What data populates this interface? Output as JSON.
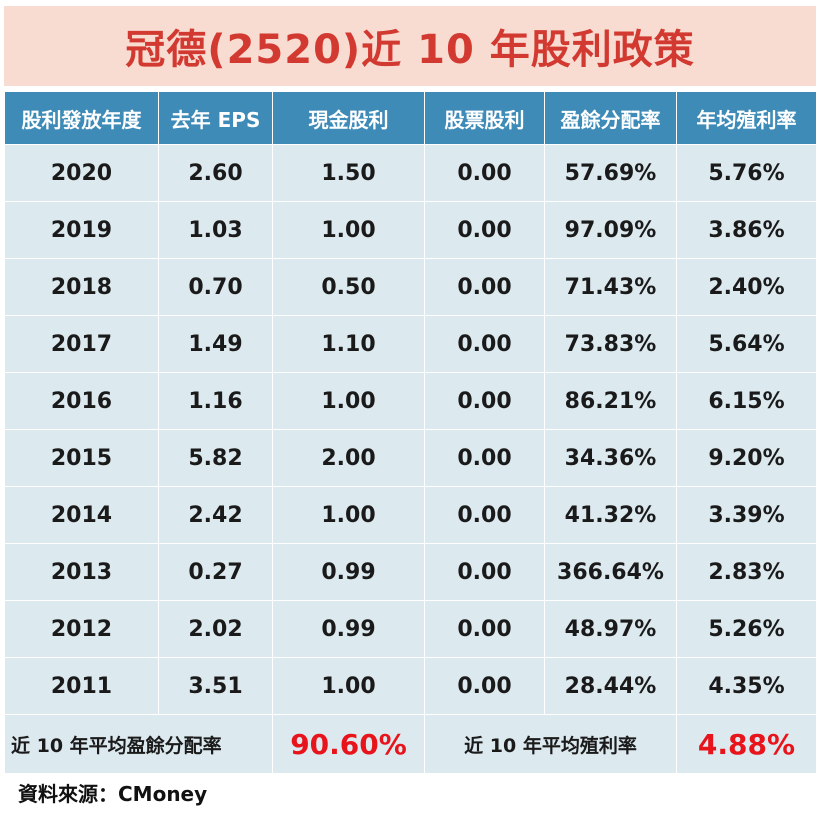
{
  "title": "冠德(2520)近 10 年股利政策",
  "headers": [
    "股利發放年度",
    "去年 EPS",
    "現金股利",
    "股票股利",
    "盈餘分配率",
    "年均殖利率"
  ],
  "rows": [
    [
      "2020",
      "2.60",
      "1.50",
      "0.00",
      "57.69%",
      "5.76%"
    ],
    [
      "2019",
      "1.03",
      "1.00",
      "0.00",
      "97.09%",
      "3.86%"
    ],
    [
      "2018",
      "0.70",
      "0.50",
      "0.00",
      "71.43%",
      "2.40%"
    ],
    [
      "2017",
      "1.49",
      "1.10",
      "0.00",
      "73.83%",
      "5.64%"
    ],
    [
      "2016",
      "1.16",
      "1.00",
      "0.00",
      "86.21%",
      "6.15%"
    ],
    [
      "2015",
      "5.82",
      "2.00",
      "0.00",
      "34.36%",
      "9.20%"
    ],
    [
      "2014",
      "2.42",
      "1.00",
      "0.00",
      "41.32%",
      "3.39%"
    ],
    [
      "2013",
      "0.27",
      "0.99",
      "0.00",
      "366.64%",
      "2.83%"
    ],
    [
      "2012",
      "2.02",
      "0.99",
      "0.00",
      "48.97%",
      "5.26%"
    ],
    [
      "2011",
      "3.51",
      "1.00",
      "0.00",
      "28.44%",
      "4.35%"
    ]
  ],
  "summary": {
    "payout_label": "近 10 年平均盈餘分配率",
    "payout_value": "90.60%",
    "yield_label": "近 10 年平均殖利率",
    "yield_value": "4.88%"
  },
  "source": "資料來源：CMoney",
  "colors": {
    "title_bg": "#f8dcd2",
    "title_text": "#d23a31",
    "header_bg": "#3e8bb7",
    "cell_bg": "#dce9ef",
    "highlight": "#e8141b"
  }
}
